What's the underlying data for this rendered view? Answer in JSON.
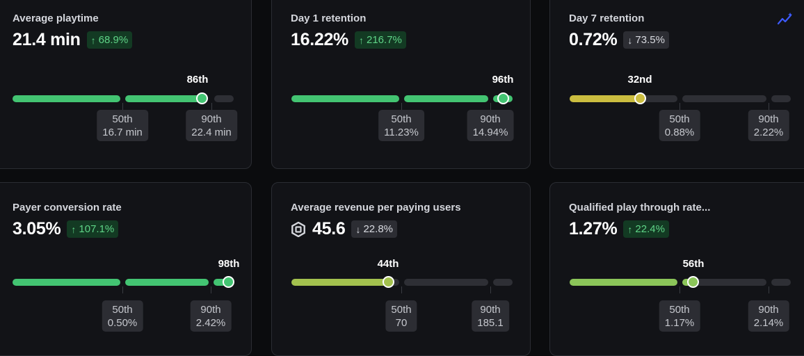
{
  "cards": [
    {
      "title": "Average playtime",
      "value": "21.4 min",
      "delta": "68.9%",
      "delta_dir": "up",
      "percentile": "86th",
      "p50_label": "50th",
      "p50_value": "16.7 min",
      "p90_label": "90th",
      "p90_value": "22.4 min"
    },
    {
      "title": "Day 1 retention",
      "value": "16.22%",
      "delta": "216.7%",
      "delta_dir": "up",
      "percentile": "96th",
      "p50_label": "50th",
      "p50_value": "11.23%",
      "p90_label": "90th",
      "p90_value": "14.94%"
    },
    {
      "title": "Day 7 retention",
      "value": "0.72%",
      "delta": "73.5%",
      "delta_dir": "down",
      "percentile": "32nd",
      "p50_label": "50th",
      "p50_value": "0.88%",
      "p90_label": "90th",
      "p90_value": "2.22%"
    },
    {
      "title": "Payer conversion rate",
      "value": "3.05%",
      "delta": "107.1%",
      "delta_dir": "up",
      "percentile": "98th",
      "p50_label": "50th",
      "p50_value": "0.50%",
      "p90_label": "90th",
      "p90_value": "2.42%"
    },
    {
      "title": "Average revenue per paying users",
      "value": "45.6",
      "delta": "22.8%",
      "delta_dir": "down",
      "percentile": "44th",
      "p50_label": "50th",
      "p50_value": "70",
      "p90_label": "90th",
      "p90_value": "185.1"
    },
    {
      "title": "Qualified play through rate...",
      "value": "1.27%",
      "delta": "22.4%",
      "delta_dir": "up",
      "percentile": "56th",
      "p50_label": "50th",
      "p50_value": "1.17%",
      "p90_label": "90th",
      "p90_value": "2.14%"
    }
  ],
  "icons": {
    "up": "arrow-up-icon",
    "down": "arrow-down-icon",
    "currency": "robux-icon",
    "trend": "trend-sparkle-icon"
  },
  "colors": {
    "green": "#43c472",
    "yellow": "#cbbd40",
    "lime": "#a3c14e",
    "light_green": "#8bc559",
    "track": "#2e2f35",
    "trend_icon": "#3d5bff"
  }
}
